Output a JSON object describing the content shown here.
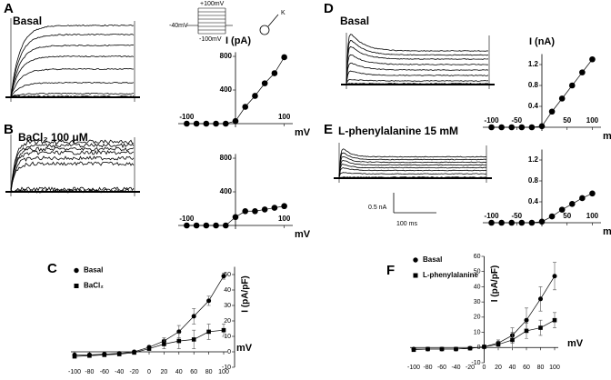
{
  "figure": {
    "panel_labels": [
      "A",
      "B",
      "C",
      "D",
      "E",
      "F"
    ],
    "trace_labels": [
      "Basal",
      "BaCl₂ 100 μM",
      "Basal",
      "L-phenylalanine 15 mM"
    ],
    "protocol": {
      "top": "+100mV",
      "hold": "-40mV",
      "bottom": "-100mV"
    },
    "cell_label": "K",
    "scale_bar": {
      "current": "0.5 nA",
      "time": "100 ms"
    }
  },
  "chart_data": [
    {
      "type": "line",
      "ylabel": "I (pA)",
      "xlabel": "mV",
      "x": [
        -100,
        -80,
        -60,
        -40,
        -20,
        0,
        20,
        40,
        60,
        80,
        100
      ],
      "values": [
        0,
        0,
        0,
        0,
        0,
        30,
        200,
        330,
        480,
        600,
        790
      ],
      "xlim": [
        -110,
        110
      ],
      "ylim": [
        0,
        850
      ],
      "xticks": [
        -100,
        100
      ],
      "yticks": [
        400,
        800
      ],
      "color": "#000000"
    },
    {
      "type": "line",
      "ylabel": "",
      "xlabel": "mV",
      "x": [
        -100,
        -80,
        -60,
        -40,
        -20,
        0,
        20,
        40,
        60,
        80,
        100
      ],
      "values": [
        0,
        0,
        0,
        0,
        0,
        100,
        170,
        170,
        190,
        210,
        230
      ],
      "xlim": [
        -110,
        110
      ],
      "ylim": [
        0,
        850
      ],
      "xticks": [
        -100,
        100
      ],
      "yticks": [
        400,
        800
      ],
      "color": "#000000"
    },
    {
      "type": "line",
      "ylabel": "I (nA)",
      "xlabel": "mV",
      "x": [
        -100,
        -80,
        -60,
        -40,
        -20,
        0,
        20,
        40,
        60,
        80,
        100
      ],
      "values": [
        0,
        0,
        0,
        0,
        0,
        0.02,
        0.3,
        0.55,
        0.8,
        1.05,
        1.3
      ],
      "xlim": [
        -110,
        110
      ],
      "ylim": [
        0,
        1.4
      ],
      "xticks": [
        -100,
        -50,
        50,
        100
      ],
      "yticks": [
        0.4,
        0.8,
        1.2
      ],
      "color": "#000000"
    },
    {
      "type": "line",
      "ylabel": "",
      "xlabel": "mV",
      "x": [
        -100,
        -80,
        -60,
        -40,
        -20,
        0,
        20,
        40,
        60,
        80,
        100
      ],
      "values": [
        0,
        0,
        0,
        0,
        0,
        0.02,
        0.12,
        0.25,
        0.36,
        0.47,
        0.56
      ],
      "xlim": [
        -110,
        110
      ],
      "ylim": [
        0,
        1.4
      ],
      "xticks": [
        -100,
        -50,
        50,
        100
      ],
      "yticks": [
        0.4,
        0.8,
        1.2
      ],
      "color": "#000000"
    },
    {
      "type": "errorline",
      "ylabel": "I (pA/pF)",
      "xlabel": "mV",
      "x": [
        -100,
        -80,
        -60,
        -40,
        -20,
        0,
        20,
        40,
        60,
        80,
        100
      ],
      "series": [
        {
          "name": "Basal",
          "marker": "circle",
          "values": [
            -2,
            -2,
            -1.5,
            -1,
            0,
            3,
            7,
            13,
            23,
            33,
            49
          ],
          "errors": [
            0.5,
            0.5,
            0.5,
            0.5,
            0.5,
            1,
            2,
            4,
            5,
            3,
            2
          ]
        },
        {
          "name": "BaCl₂",
          "marker": "square",
          "values": [
            -3,
            -2.5,
            -2,
            -1.5,
            -0.5,
            2,
            5,
            7,
            8,
            13,
            14
          ],
          "errors": [
            0.5,
            0.5,
            0.5,
            0.5,
            0.5,
            1,
            3,
            5,
            6,
            5,
            4
          ]
        }
      ],
      "xlim": [
        -100,
        100
      ],
      "ylim": [
        -10,
        55
      ],
      "xticks": [
        -100,
        -80,
        -60,
        -40,
        -20,
        0,
        20,
        40,
        60,
        80,
        100
      ],
      "yticks": [
        -10,
        0,
        10,
        20,
        30,
        40,
        50
      ],
      "color": "#000000"
    },
    {
      "type": "errorline",
      "ylabel": "I (pA/pF)",
      "xlabel": "mV",
      "x": [
        -100,
        -80,
        -60,
        -40,
        -20,
        0,
        20,
        40,
        60,
        80,
        100
      ],
      "series": [
        {
          "name": "Basal",
          "marker": "circle",
          "values": [
            -1,
            -1,
            -1,
            -1,
            -0.5,
            0.5,
            3,
            8,
            18,
            32,
            47
          ],
          "errors": [
            0.5,
            0.5,
            0.5,
            0.5,
            0.5,
            1,
            2,
            5,
            8,
            8,
            9
          ]
        },
        {
          "name": "L-phenylalanine",
          "marker": "square",
          "values": [
            -1.5,
            -1,
            -1,
            -1,
            -0.5,
            0.5,
            2,
            5,
            11,
            13,
            18
          ],
          "errors": [
            0.5,
            0.5,
            0.5,
            0.5,
            0.5,
            1,
            2,
            5,
            5,
            5,
            5
          ]
        }
      ],
      "xlim": [
        -100,
        100
      ],
      "ylim": [
        -10,
        60
      ],
      "xticks": [
        -100,
        -80,
        -60,
        -40,
        -20,
        0,
        20,
        40,
        60,
        80,
        100
      ],
      "yticks": [
        -10,
        0,
        10,
        20,
        30,
        40,
        50,
        60
      ],
      "color": "#000000"
    }
  ]
}
